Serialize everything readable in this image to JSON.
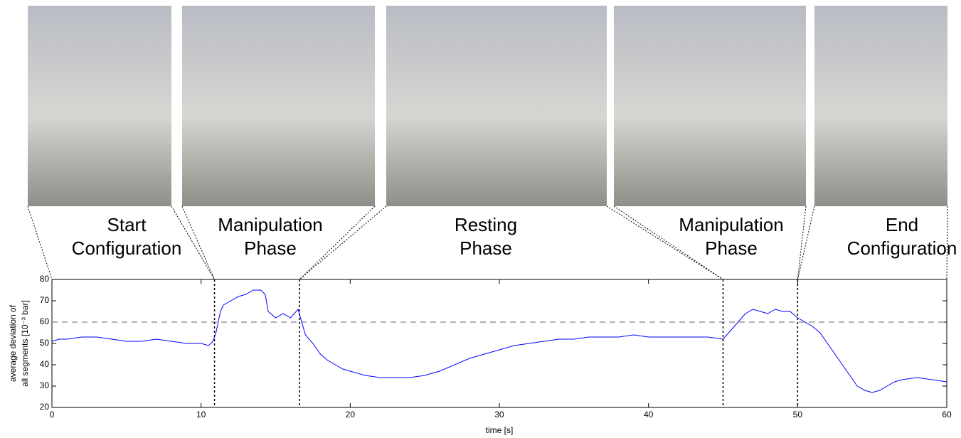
{
  "chart_data": {
    "type": "line",
    "panels": [
      {
        "label": [
          "Start",
          "Configuration"
        ]
      },
      {
        "label": [
          "Manipulation",
          "Phase"
        ]
      },
      {
        "label": [
          "Resting",
          "Phase"
        ]
      },
      {
        "label": [
          "Manipulation",
          "Phase"
        ]
      },
      {
        "label": [
          "End",
          "Configuration"
        ]
      }
    ],
    "x_label": "time [s]",
    "y_label": [
      "average deviation of",
      "all segments [10⁻³ bar]"
    ],
    "xlim": [
      0,
      60
    ],
    "xticks": [
      0,
      10,
      20,
      30,
      40,
      50,
      60
    ],
    "ylim": [
      20,
      80
    ],
    "yticks": [
      20,
      30,
      40,
      50,
      60,
      70,
      80
    ],
    "grid": false,
    "reference_line": 60,
    "phase_boundaries": [
      10.9,
      16.6,
      45,
      50
    ],
    "series": [
      {
        "color": "#0000ff",
        "x": [
          0,
          0.5,
          1,
          2,
          3,
          4,
          5,
          6,
          7,
          8,
          9,
          10,
          10.5,
          10.8,
          11,
          11.3,
          11.5,
          12,
          12.5,
          13,
          13.5,
          14,
          14.3,
          14.5,
          15,
          15.5,
          16,
          16.5,
          17,
          17.5,
          18,
          18.5,
          19,
          19.5,
          20,
          21,
          22,
          23,
          24,
          25,
          26,
          27,
          28,
          29,
          30,
          31,
          32,
          33,
          34,
          35,
          36,
          37,
          38,
          39,
          40,
          41,
          42,
          43,
          44,
          45,
          45.5,
          46,
          46.5,
          47,
          47.5,
          48,
          48.5,
          49,
          49.5,
          50,
          50.5,
          51,
          51.5,
          52,
          52.5,
          53,
          53.5,
          54,
          54.5,
          55,
          55.5,
          56,
          56.5,
          57,
          58,
          59,
          60
        ],
        "values": [
          51,
          52,
          52,
          53,
          53,
          52,
          51,
          51,
          52,
          51,
          50,
          50,
          49,
          51,
          55,
          65,
          68,
          70,
          72,
          73,
          75,
          75,
          73,
          65,
          62,
          64,
          62,
          66,
          54,
          50,
          45,
          42,
          40,
          38,
          37,
          35,
          34,
          34,
          34,
          35,
          37,
          40,
          43,
          45,
          47,
          49,
          50,
          51,
          52,
          52,
          53,
          53,
          53,
          54,
          53,
          53,
          53,
          53,
          53,
          52,
          56,
          60,
          64,
          66,
          65,
          64,
          66,
          65,
          65,
          62,
          60,
          58,
          55,
          50,
          45,
          40,
          35,
          30,
          28,
          27,
          28,
          30,
          32,
          33,
          34,
          33,
          32
        ]
      }
    ]
  }
}
